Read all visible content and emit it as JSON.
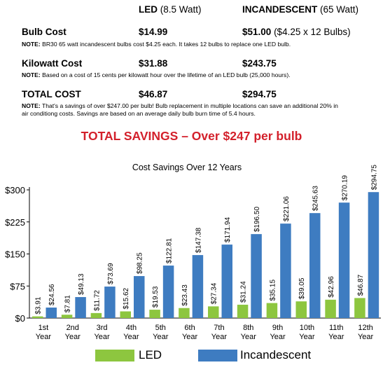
{
  "table": {
    "led_header": "LED",
    "led_header_sub": "(8.5 Watt)",
    "inc_header": "INCANDESCENT",
    "inc_header_sub": "(65 Watt)",
    "rows": [
      {
        "label": "Bulb Cost",
        "led": "$14.99",
        "inc": "$51.00",
        "inc_extra": "($4.25 x 12 Bulbs)",
        "note_label": "NOTE:",
        "note": " BR30 65 watt incandescent bulbs cost $4.25 each. It takes 12 bulbs to replace one LED bulb."
      },
      {
        "label": "Kilowatt Cost",
        "led": "$31.88",
        "inc": "$243.75",
        "inc_extra": "",
        "note_label": "NOTE:",
        "note": " Based on a cost of 15 cents per kilowatt hour over the lifetime of an LED bulb (25,000 hours)."
      },
      {
        "label": "TOTAL COST",
        "led": "$46.87",
        "inc": "$294.75",
        "inc_extra": "",
        "note_label": "NOTE:",
        "note_line1": " That's a savings of over $247.00 per bulb! Bulb replacement in multiple locations can save an additional 20% in",
        "note_line2": "air conditiong costs. Savings are based on an average daily bulb burn time of 5.4 hours."
      }
    ]
  },
  "savings_headline": "TOTAL SAVINGS – Over $247 per bulb",
  "chart_data": {
    "type": "bar",
    "title": "Cost Savings Over 12 Years",
    "categories": [
      [
        "1st",
        "Year"
      ],
      [
        "2nd",
        "Year"
      ],
      [
        "3rd",
        "Year"
      ],
      [
        "4th",
        "Year"
      ],
      [
        "5th",
        "Year"
      ],
      [
        "6th",
        "Year"
      ],
      [
        "7th",
        "Year"
      ],
      [
        "8th",
        "Year"
      ],
      [
        "9th",
        "Year"
      ],
      [
        "10th",
        "Year"
      ],
      [
        "11th",
        "Year"
      ],
      [
        "12th",
        "Year"
      ]
    ],
    "series": [
      {
        "name": "LED",
        "color": "#8dc63f",
        "values": [
          3.91,
          7.81,
          11.72,
          15.62,
          19.53,
          23.43,
          27.34,
          31.24,
          35.15,
          39.05,
          42.96,
          46.87
        ],
        "labels": [
          "$3.91",
          "$7.81",
          "$11.72",
          "$15.62",
          "$19.53",
          "$23.43",
          "$27.34",
          "$31.24",
          "$35.15",
          "$39.05",
          "$42.96",
          "$46.87"
        ]
      },
      {
        "name": "Incandescent",
        "color": "#3e7cc1",
        "values": [
          24.56,
          49.13,
          73.69,
          98.25,
          122.81,
          147.38,
          171.94,
          196.5,
          221.06,
          245.63,
          270.19,
          294.75
        ],
        "labels": [
          "$24.56",
          "$49.13",
          "$73.69",
          "$98.25",
          "$122.81",
          "$147.38",
          "$171.94",
          "$196.50",
          "$221.06",
          "$245.63",
          "$270.19",
          "$294.75"
        ]
      }
    ],
    "yticks": [
      0,
      75,
      150,
      225,
      300
    ],
    "ytick_labels": [
      "$0",
      "$75",
      "$150",
      "$225",
      "$300"
    ],
    "ylim": [
      0,
      300
    ],
    "grid": false,
    "legend": "bottom"
  }
}
